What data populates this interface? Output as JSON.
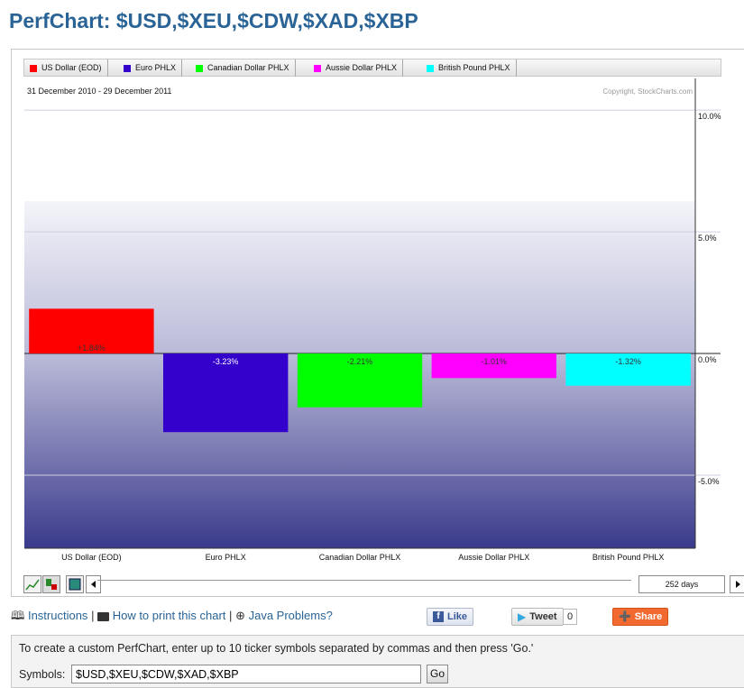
{
  "page": {
    "title": "PerfChart: $USD,$XEU,$CDW,$XAD,$XBP"
  },
  "chart_data": {
    "type": "bar",
    "date_range": "31 December 2010 - 29 December 2011",
    "copyright": "Copyright, StockCharts.com",
    "categories": [
      "US Dollar (EOD)",
      "Euro PHLX",
      "Canadian Dollar PHLX",
      "Aussie Dollar PHLX",
      "British Pound PHLX"
    ],
    "values": [
      1.84,
      -3.23,
      -2.21,
      -1.01,
      -1.32
    ],
    "value_labels": [
      "+1.84%",
      "-3.23%",
      "-2.21%",
      "-1.01%",
      "-1.32%"
    ],
    "colors": [
      "#ff0000",
      "#3300cc",
      "#00ff00",
      "#ff00ff",
      "#00ffff"
    ],
    "y_ticks": [
      10,
      5,
      0,
      -5
    ],
    "y_tick_labels": [
      "10.0%",
      "5.0%",
      "0.0%",
      "-5.0%"
    ],
    "ylim": [
      -8.0,
      11.3
    ],
    "legend_placement": "top",
    "grid": true
  },
  "legend": [
    {
      "label": "US Dollar (EOD)",
      "color": "#ff0000"
    },
    {
      "label": "Euro PHLX",
      "color": "#3300cc"
    },
    {
      "label": "Canadian Dollar PHLX",
      "color": "#00ff00"
    },
    {
      "label": "Aussie Dollar PHLX",
      "color": "#ff00ff"
    },
    {
      "label": "British Pound PHLX",
      "color": "#00ffff"
    }
  ],
  "controls": {
    "days": "252 days",
    "icons": [
      "line-chart-icon",
      "bar-chart-icon",
      "histogram-icon",
      "scroll-left-icon",
      "scroll-right-icon"
    ]
  },
  "links": {
    "instructions": "Instructions",
    "sep1": "|",
    "print": "How to print this chart",
    "sep2": "|",
    "java": "Java Problems?"
  },
  "social": {
    "like": "Like",
    "tweet": "Tweet",
    "tweet_count": "0",
    "share": "Share"
  },
  "form": {
    "instructions": "To create a custom PerfChart, enter up to 10 ticker symbols separated by commas and then press 'Go.'",
    "symbols_label": "Symbols:",
    "symbols_value": "$USD,$XEU,$CDW,$XAD,$XBP",
    "go_label": "Go"
  }
}
